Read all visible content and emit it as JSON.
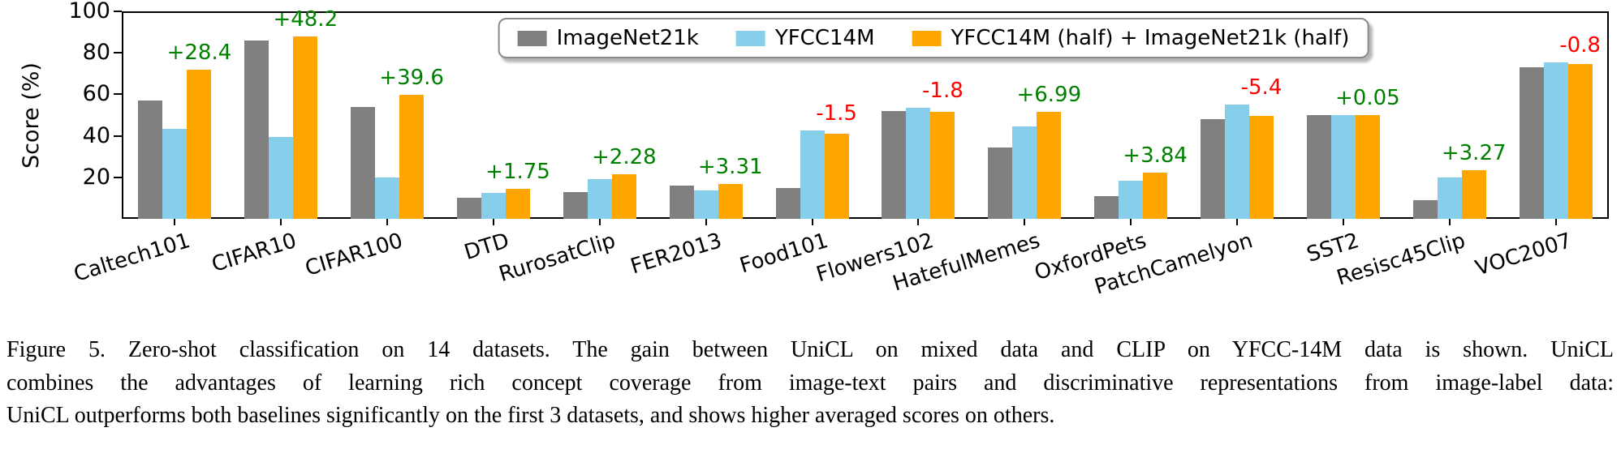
{
  "figure": {
    "caption_lines": [
      "Figure 5. Zero-shot classification on 14 datasets. The gain between UniCL on mixed data and CLIP on YFCC-14M data is shown. UniCL",
      "combines the advantages of learning rich concept coverage from image-text pairs and discriminative representations from image-label data:",
      "UniCL outperforms both baselines significantly on the first 3 datasets, and shows higher averaged scores on others."
    ]
  },
  "chart_data": {
    "type": "bar",
    "title": "",
    "xlabel": "",
    "ylabel": "Score (%)",
    "ylim": [
      0,
      100
    ],
    "yticks": [
      20,
      40,
      60,
      80,
      100
    ],
    "grid": false,
    "legend_position": "top-center",
    "categories": [
      "Caltech101",
      "CIFAR10",
      "CIFAR100",
      "DTD",
      "RurosatClip",
      "FER2013",
      "Food101",
      "Flowers102",
      "HatefulMemes",
      "OxfordPets",
      "PatchCamelyon",
      "SST2",
      "Resisc45Clip",
      "VOC2007"
    ],
    "series": [
      {
        "name": "ImageNet21k",
        "color": "#808080",
        "values": [
          57,
          86,
          54,
          10,
          13,
          16,
          15,
          52,
          34.5,
          11,
          48,
          50,
          9,
          73
        ]
      },
      {
        "name": "YFCC14M",
        "color": "#87CEEB",
        "values": [
          43.5,
          39.5,
          20,
          12.5,
          19,
          13.5,
          42.5,
          53.5,
          44.5,
          18.5,
          55,
          50,
          20,
          75.5
        ]
      },
      {
        "name": "YFCC14M (half) + ImageNet21k (half)",
        "color": "#FFA500",
        "values": [
          71.9,
          87.7,
          59.6,
          14.3,
          21.3,
          16.8,
          41,
          51.7,
          51.5,
          22.3,
          49.6,
          50,
          23.3,
          74.7
        ]
      }
    ],
    "annotations": [
      {
        "label": "+28.4",
        "color": "#008000"
      },
      {
        "label": "+48.2",
        "color": "#008000"
      },
      {
        "label": "+39.6",
        "color": "#008000"
      },
      {
        "label": "+1.75",
        "color": "#008000"
      },
      {
        "label": "+2.28",
        "color": "#008000"
      },
      {
        "label": "+3.31",
        "color": "#008000"
      },
      {
        "label": "-1.5",
        "color": "#FF0000"
      },
      {
        "label": "-1.8",
        "color": "#FF0000"
      },
      {
        "label": "+6.99",
        "color": "#008000"
      },
      {
        "label": "+3.84",
        "color": "#008000"
      },
      {
        "label": "-5.4",
        "color": "#FF0000"
      },
      {
        "label": "+0.05",
        "color": "#008000"
      },
      {
        "label": "+3.27",
        "color": "#008000"
      },
      {
        "label": "-0.8",
        "color": "#FF0000"
      }
    ]
  }
}
